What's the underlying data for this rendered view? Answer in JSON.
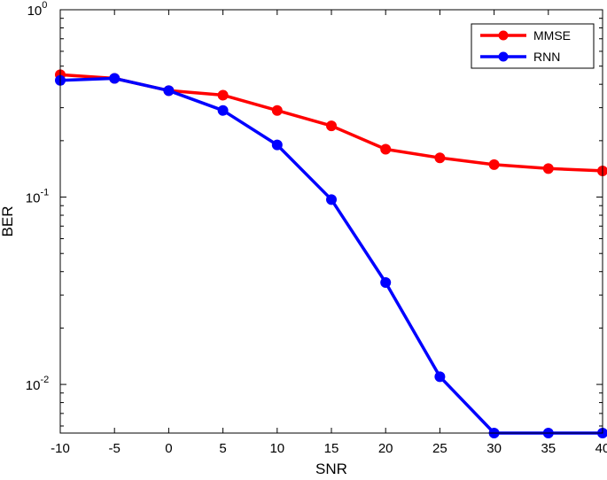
{
  "chart_data": {
    "type": "line",
    "xlabel": "SNR",
    "ylabel": "BER",
    "x": [
      -10,
      -5,
      0,
      5,
      10,
      15,
      20,
      25,
      30,
      35,
      40
    ],
    "xlim": [
      -10,
      40
    ],
    "ylim": [
      0.0055,
      1
    ],
    "yscale": "log",
    "x_ticks": [
      "-10",
      "-5",
      "0",
      "5",
      "10",
      "15",
      "20",
      "25",
      "30",
      "35",
      "40"
    ],
    "y_ticks": [
      {
        "value": 1,
        "base": "10",
        "exp": "0"
      },
      {
        "value": 0.1,
        "base": "10",
        "exp": "-1"
      },
      {
        "value": 0.01,
        "base": "10",
        "exp": "-2"
      }
    ],
    "grid": false,
    "legend_position": "top-right",
    "series": [
      {
        "name": "MMSE",
        "color": "#ff0000",
        "values": [
          0.45,
          0.43,
          0.37,
          0.35,
          0.29,
          0.24,
          0.18,
          0.162,
          0.149,
          0.142,
          0.138
        ]
      },
      {
        "name": "RNN",
        "color": "#0000ff",
        "values": [
          0.42,
          0.43,
          0.37,
          0.29,
          0.19,
          0.097,
          0.035,
          0.011,
          0.0055,
          0.0055,
          0.0055
        ]
      }
    ]
  }
}
